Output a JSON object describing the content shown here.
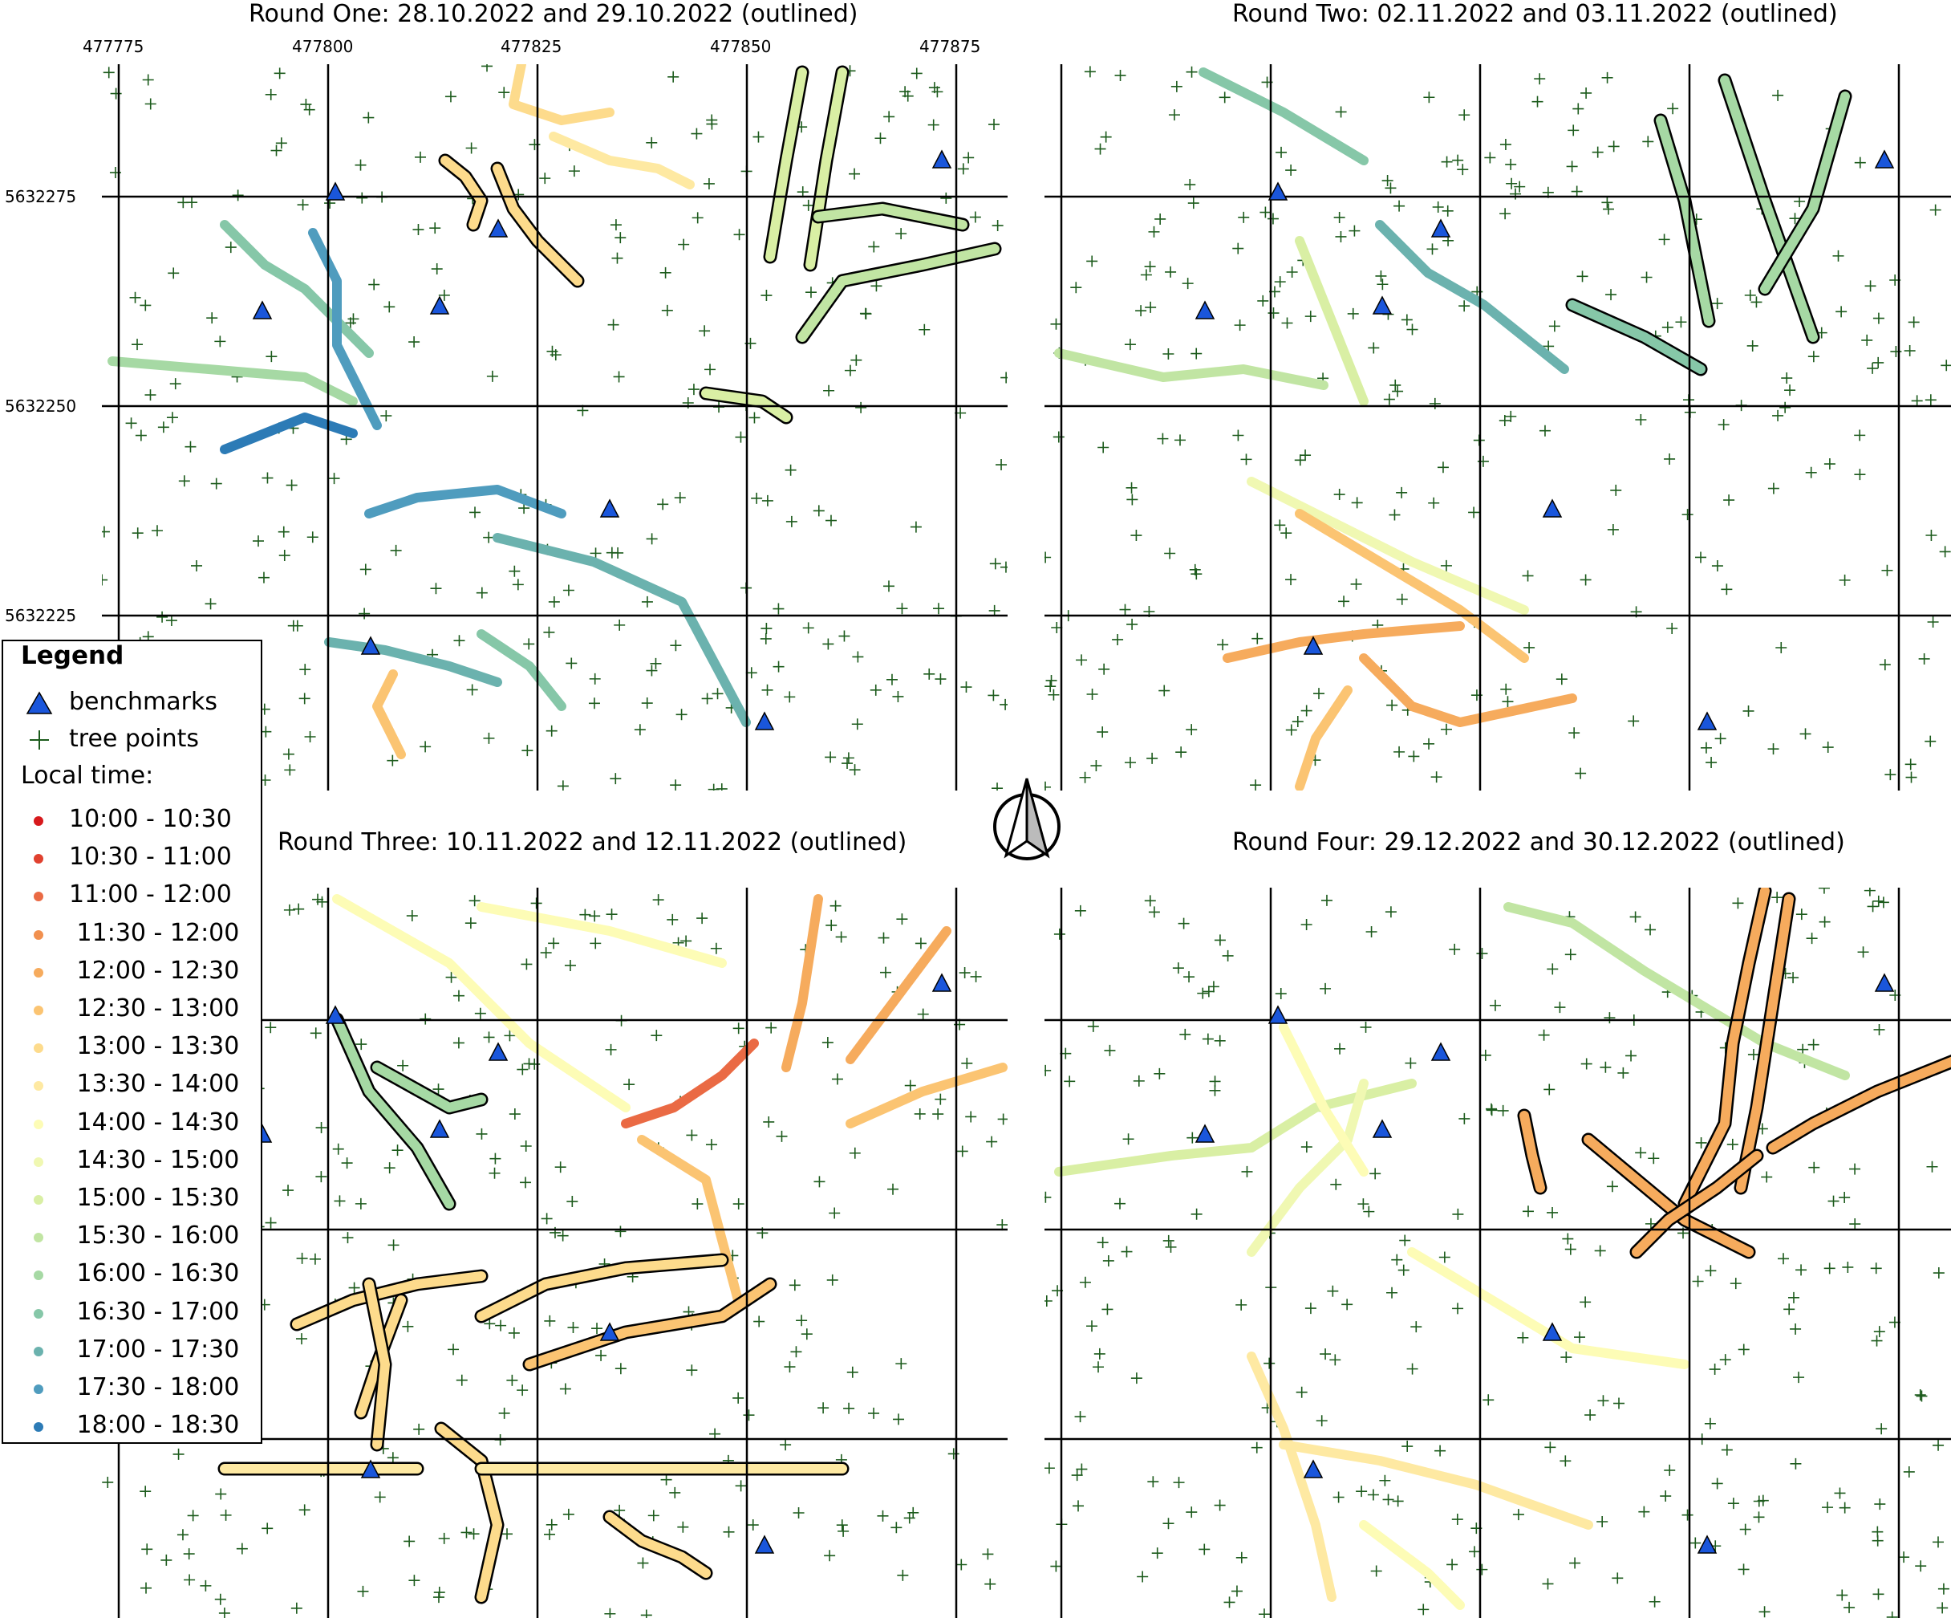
{
  "colors": {
    "benchmark": "#1a56db",
    "tree": "#1c5b1c",
    "grid": "#000000"
  },
  "panels": [
    {
      "title": "Round One: 28.10.2022 and 29.10.2022 (outlined)"
    },
    {
      "title": "Round Two: 02.11.2022 and 03.11.2022 (outlined)"
    },
    {
      "title": "Round Three: 10.11.2022 and 12.11.2022 (outlined)"
    },
    {
      "title": "Round Four: 29.12.2022 and 30.12.2022 (outlined)"
    }
  ],
  "axes": {
    "x_ticks": [
      "477775",
      "477800",
      "477825",
      "477850",
      "477875"
    ],
    "y_ticks": [
      "5632275",
      "5632250",
      "5632225"
    ]
  },
  "legend": {
    "title": "Legend",
    "benchmarks_label": "benchmarks",
    "tree_label": "tree points",
    "time_heading": "Local time:",
    "time_bins": [
      {
        "label": "10:00 - 10:30",
        "color": "#d7191c"
      },
      {
        "label": "10:30 - 11:00",
        "color": "#e0412f"
      },
      {
        "label": "11:00 - 12:00",
        "color": "#ea6a44"
      },
      {
        "label": " 11:30 - 12:00",
        "color": "#f1904f"
      },
      {
        "label": " 12:00 - 12:30",
        "color": "#f6ab5d"
      },
      {
        "label": " 12:30 - 13:00",
        "color": "#fbc472"
      },
      {
        "label": " 13:00 - 13:30",
        "color": "#fddb8c"
      },
      {
        "label": " 13:30 - 14:00",
        "color": "#fee9a2"
      },
      {
        "label": " 14:00 - 14:30",
        "color": "#fdfcb6"
      },
      {
        "label": " 14:30 - 15:00",
        "color": "#f0f8b2"
      },
      {
        "label": " 15:00 - 15:30",
        "color": "#d9efa4"
      },
      {
        "label": " 15:30 - 16:00",
        "color": "#c1e5a3"
      },
      {
        "label": " 16:00 - 16:30",
        "color": "#a6d9a4"
      },
      {
        "label": " 16:30 - 17:00",
        "color": "#86c7a8"
      },
      {
        "label": " 17:00 - 17:30",
        "color": "#6bb2ae"
      },
      {
        "label": " 17:30 - 18:00",
        "color": "#4f9cbe"
      },
      {
        "label": " 18:00 - 18:30",
        "color": "#2c7bb6"
      }
    ]
  },
  "map_data": {
    "x_range": [
      477765,
      477880
    ],
    "y_range": [
      5632205,
      5632290
    ],
    "benchmarks": [
      [
        477874,
        5632279
      ],
      [
        477801,
        5632275
      ],
      [
        477820,
        5632266
      ],
      [
        477813,
        5632261
      ],
      [
        477792,
        5632261
      ],
      [
        477834,
        5632237
      ],
      [
        477805,
        5632220
      ],
      [
        477852,
        5632212
      ]
    ]
  }
}
